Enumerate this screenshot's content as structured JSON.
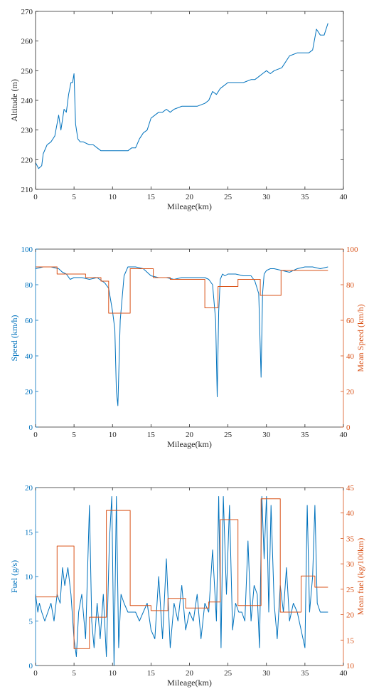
{
  "colors": {
    "blue": "#0072BD",
    "orange": "#D95319",
    "axis": "#262626"
  },
  "chart_data": [
    {
      "type": "line",
      "xlabel": "Mileage(km)",
      "ylabel": "Altitude (m)",
      "xlim": [
        0,
        40
      ],
      "ylim": [
        210,
        270
      ],
      "xticks": [
        "0",
        "5",
        "10",
        "15",
        "20",
        "25",
        "30",
        "35",
        "40"
      ],
      "yticks": [
        "210",
        "220",
        "230",
        "240",
        "250",
        "260",
        "270"
      ],
      "series": [
        {
          "color": "#0072BD",
          "x": [
            0,
            0.4,
            0.8,
            1.0,
            1.5,
            2.0,
            2.5,
            3.0,
            3.3,
            3.7,
            4.0,
            4.3,
            4.6,
            4.8,
            5.0,
            5.2,
            5.5,
            5.8,
            6.2,
            7.0,
            7.5,
            8.0,
            8.5,
            9.0,
            9.5,
            10.0,
            10.5,
            11.0,
            11.5,
            12.0,
            12.5,
            13.0,
            13.5,
            14.0,
            14.5,
            15.0,
            15.5,
            16.0,
            16.5,
            17.0,
            17.5,
            18.0,
            19.0,
            20.0,
            21.0,
            22.0,
            22.5,
            23.0,
            23.5,
            24.0,
            24.5,
            25.0,
            26.0,
            27.0,
            28.0,
            28.5,
            29.0,
            29.5,
            30.0,
            30.5,
            31.0,
            32.0,
            33.0,
            34.0,
            35.0,
            35.5,
            36.0,
            36.5,
            37.0,
            37.5,
            38.0
          ],
          "y": [
            219,
            217,
            218,
            222,
            225,
            226,
            228,
            235,
            230,
            237,
            236,
            242,
            246,
            246,
            249,
            232,
            227,
            226,
            226,
            225,
            225,
            224,
            223,
            223,
            223,
            223,
            223,
            223,
            223,
            223,
            224,
            224,
            227,
            229,
            230,
            234,
            235,
            236,
            236,
            237,
            236,
            237,
            238,
            238,
            238,
            239,
            240,
            243,
            242,
            244,
            245,
            246,
            246,
            246,
            247,
            247,
            248,
            249,
            250,
            249,
            250,
            251,
            255,
            256,
            256,
            256,
            257,
            264,
            262,
            262,
            266
          ]
        }
      ]
    },
    {
      "type": "line",
      "xlabel": "Mileage(km)",
      "ylabel": "Speed (km/h)",
      "y2label": "Mean Speed (km/h)",
      "xlim": [
        0,
        40
      ],
      "ylim": [
        0,
        100
      ],
      "y2lim": [
        0,
        100
      ],
      "xticks": [
        "0",
        "5",
        "10",
        "15",
        "20",
        "25",
        "30",
        "35",
        "40"
      ],
      "yticks": [
        "0",
        "20",
        "40",
        "60",
        "80",
        "100"
      ],
      "y2ticks": [
        "0",
        "20",
        "40",
        "60",
        "80",
        "100"
      ],
      "series": [
        {
          "axis": "left",
          "color": "#0072BD",
          "x": [
            0,
            1,
            2,
            3,
            3.5,
            4,
            4.5,
            5,
            6,
            7,
            8,
            9,
            9.5,
            10,
            10.3,
            10.5,
            10.7,
            11,
            11.5,
            12,
            12.5,
            13,
            14,
            15,
            16,
            17,
            18,
            19,
            20,
            21,
            22,
            22.5,
            23,
            23.4,
            23.6,
            23.8,
            24,
            24.3,
            24.6,
            25,
            26,
            27,
            28,
            28.5,
            29,
            29.3,
            29.5,
            29.7,
            30,
            30.5,
            31,
            32,
            33,
            34,
            35,
            36,
            37,
            38
          ],
          "y": [
            89,
            90,
            90,
            89,
            87,
            86,
            83,
            84,
            84,
            83,
            84,
            81,
            78,
            65,
            55,
            20,
            12,
            60,
            85,
            90,
            90,
            90,
            89,
            85,
            84,
            84,
            83,
            84,
            84,
            84,
            84,
            83,
            80,
            60,
            17,
            65,
            83,
            86,
            85,
            86,
            86,
            85,
            85,
            82,
            75,
            28,
            75,
            86,
            88,
            89,
            89,
            88,
            87,
            89,
            90,
            90,
            89,
            90
          ]
        },
        {
          "axis": "right",
          "color": "#D95319",
          "step": true,
          "x": [
            0,
            2.8,
            2.8,
            6.5,
            6.5,
            8.5,
            8.5,
            9.5,
            9.5,
            12.3,
            12.3,
            15.3,
            15.3,
            17.5,
            17.5,
            22.0,
            22.0,
            23.7,
            23.7,
            26.3,
            26.3,
            29.2,
            29.2,
            31.9,
            31.9,
            38
          ],
          "y": [
            90,
            90,
            86,
            86,
            84,
            84,
            82,
            82,
            64,
            64,
            89,
            89,
            84,
            84,
            83,
            83,
            67,
            67,
            79,
            79,
            83,
            83,
            74,
            74,
            88,
            88
          ]
        }
      ]
    },
    {
      "type": "line",
      "xlabel": "Mileage(km)",
      "ylabel": "Fuel (g/s)",
      "y2label": "Mean fuel (kg/100km)",
      "xlim": [
        0,
        40
      ],
      "ylim": [
        0,
        20
      ],
      "y2lim": [
        10,
        45
      ],
      "xticks": [
        "0",
        "5",
        "10",
        "15",
        "20",
        "25",
        "30",
        "35",
        "40"
      ],
      "yticks": [
        "0",
        "5",
        "10",
        "15",
        "20"
      ],
      "y2ticks": [
        "10",
        "15",
        "20",
        "25",
        "30",
        "35",
        "40",
        "45"
      ],
      "series": [
        {
          "axis": "left",
          "color": "#0072BD",
          "x": [
            0,
            0.3,
            0.5,
            0.8,
            1.2,
            1.6,
            2.0,
            2.4,
            2.8,
            3.2,
            3.5,
            3.8,
            4.2,
            4.6,
            5.0,
            5.3,
            5.6,
            6.0,
            6.5,
            7.0,
            7.3,
            7.6,
            8.0,
            8.4,
            8.8,
            9.2,
            9.6,
            9.9,
            10.2,
            10.5,
            10.8,
            11.1,
            11.5,
            12.0,
            12.5,
            13.0,
            13.5,
            14.0,
            14.5,
            15.0,
            15.5,
            16.0,
            16.5,
            17.0,
            17.5,
            18.0,
            18.5,
            19.0,
            19.5,
            20.0,
            20.5,
            21.0,
            21.5,
            22.0,
            22.5,
            23.0,
            23.5,
            23.8,
            24.1,
            24.4,
            24.8,
            25.2,
            25.6,
            26.0,
            26.4,
            26.8,
            27.2,
            27.6,
            28.0,
            28.4,
            28.8,
            29.1,
            29.4,
            29.7,
            30.0,
            30.3,
            30.6,
            31.0,
            31.4,
            31.8,
            32.2,
            32.6,
            33.0,
            33.5,
            34.0,
            34.5,
            35.0,
            35.3,
            35.6,
            36.0,
            36.3,
            36.6,
            37.0,
            37.5,
            38.0
          ],
          "y": [
            8,
            6,
            7,
            6,
            5,
            6,
            7,
            5,
            8,
            7,
            11,
            9,
            11,
            8,
            3,
            1,
            6,
            8,
            3,
            18,
            5,
            2,
            7,
            3,
            8,
            1,
            14,
            19,
            0,
            19,
            2,
            8,
            7,
            6,
            6,
            6,
            5,
            6,
            7,
            4,
            3,
            10,
            3,
            12,
            2,
            7,
            5,
            9,
            4,
            6,
            5,
            8,
            3,
            7,
            6,
            13,
            5,
            19,
            2,
            19,
            8,
            18,
            4,
            7,
            6,
            6,
            5,
            14,
            5,
            9,
            8,
            2,
            19,
            12,
            19,
            6,
            18,
            7,
            3,
            9,
            6,
            11,
            5,
            7,
            6,
            4,
            2,
            18,
            6,
            10,
            18,
            7,
            6,
            6,
            6
          ]
        },
        {
          "axis": "right",
          "color": "#D95319",
          "step": true,
          "x": [
            0,
            2.8,
            2.8,
            5.0,
            5.0,
            7.0,
            7.0,
            9.2,
            9.2,
            12.3,
            12.3,
            15.0,
            15.0,
            17.2,
            17.2,
            19.5,
            19.5,
            22.5,
            22.5,
            24.0,
            24.0,
            26.3,
            26.3,
            29.3,
            29.3,
            31.8,
            31.8,
            34.5,
            34.5,
            36.3,
            36.3,
            38
          ],
          "y": [
            23.5,
            23.5,
            33.5,
            33.5,
            13.3,
            13.3,
            19.5,
            19.5,
            40.5,
            40.5,
            21.8,
            21.8,
            20.8,
            20.8,
            23.2,
            23.2,
            21.3,
            21.3,
            22.5,
            22.5,
            38.7,
            38.7,
            21.8,
            21.8,
            42.8,
            42.8,
            20.5,
            20.5,
            27.6,
            27.6,
            25.4,
            25.4
          ]
        }
      ]
    }
  ]
}
